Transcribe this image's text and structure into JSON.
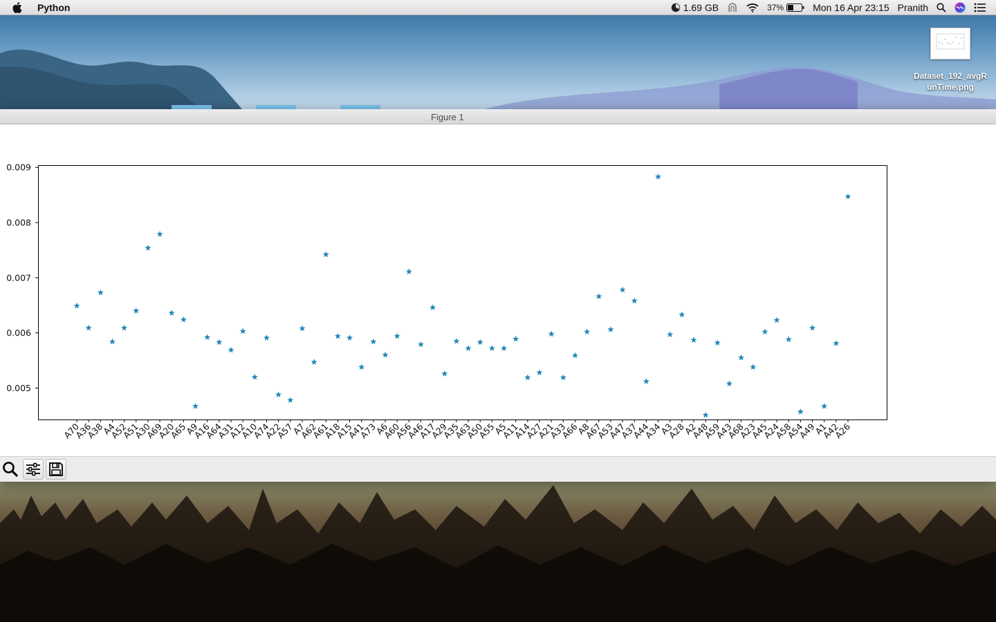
{
  "menubar": {
    "app_name": "Python",
    "memory": "1.69 GB",
    "battery_percent": "37%",
    "datetime": "Mon 16 Apr  23:15",
    "user": "Pranith",
    "icons": [
      "apple-icon",
      "memory-gauge-icon",
      "airplay-icon",
      "wifi-icon",
      "battery-icon",
      "spotlight-search-icon",
      "siri-icon",
      "notification-center-icon"
    ]
  },
  "desktop": {
    "file_name": "Dataset_192_avgRunTime.png"
  },
  "window": {
    "title": "Figure 1",
    "toolbar": [
      "zoom-icon",
      "configure-subplots-icon",
      "save-figure-icon"
    ]
  },
  "chart_data": {
    "type": "scatter",
    "marker": "star",
    "color": "#1f87b8",
    "ylim": [
      0.00443,
      0.00904
    ],
    "yticks": [
      "0.005",
      "0.006",
      "0.007",
      "0.008",
      "0.009"
    ],
    "ytick_values": [
      0.005,
      0.006,
      0.007,
      0.008,
      0.009
    ],
    "grid": false,
    "categories": [
      "A70",
      "A36",
      "A38",
      "A4",
      "A52",
      "A51",
      "A30",
      "A69",
      "A20",
      "A65",
      "A9",
      "A16",
      "A64",
      "A31",
      "A12",
      "A10",
      "A74",
      "A22",
      "A57",
      "A7",
      "A62",
      "A61",
      "A18",
      "A15",
      "A41",
      "A73",
      "A6",
      "A60",
      "A56",
      "A46",
      "A17",
      "A29",
      "A35",
      "A63",
      "A50",
      "A55",
      "A5",
      "A11",
      "A14",
      "A27",
      "A21",
      "A33",
      "A66",
      "A8",
      "A67",
      "A53",
      "A47",
      "A37",
      "A44",
      "A34",
      "A3",
      "A28",
      "A2",
      "A48",
      "A59",
      "A43",
      "A68",
      "A23",
      "A45",
      "A24",
      "A58",
      "A54",
      "A49",
      "A1",
      "A42",
      "A26"
    ],
    "values": [
      0.00649,
      0.00609,
      0.00673,
      0.00584,
      0.00609,
      0.0064,
      0.00754,
      0.00779,
      0.00636,
      0.00624,
      0.00467,
      0.00592,
      0.00583,
      0.00569,
      0.00603,
      0.0052,
      0.00591,
      0.00488,
      0.00478,
      0.00608,
      0.00547,
      0.00742,
      0.00594,
      0.00591,
      0.00538,
      0.00584,
      0.0056,
      0.00594,
      0.00711,
      0.00579,
      0.00646,
      0.00526,
      0.00585,
      0.00572,
      0.00583,
      0.00572,
      0.00572,
      0.00589,
      0.00519,
      0.00528,
      0.00598,
      0.00519,
      0.00559,
      0.00602,
      0.00666,
      0.00606,
      0.00678,
      0.00658,
      0.00512,
      0.00883,
      0.00597,
      0.00633,
      0.00587,
      0.00451,
      0.00582,
      0.00508,
      0.00555,
      0.00538,
      0.00602,
      0.00623,
      0.00588,
      0.00457,
      0.00609,
      0.00467,
      0.00581,
      0.00847
    ]
  }
}
